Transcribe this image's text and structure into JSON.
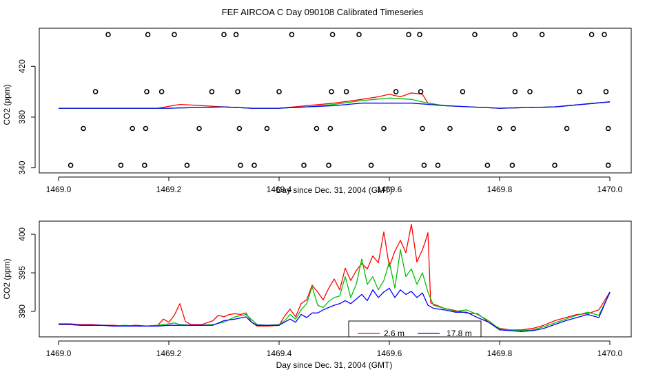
{
  "title": "FEF AIRCOA C  Day 090108  Calibrated Timeseries",
  "chart_data": [
    {
      "type": "line",
      "title": "",
      "xlabel": "Day since Dec. 31, 2004 (GMT)",
      "ylabel": "CO2 (ppm)",
      "xlim": [
        1469.0,
        1470.0
      ],
      "ylim": [
        336,
        450
      ],
      "xticks": [
        1469.0,
        1469.2,
        1469.4,
        1469.6,
        1469.8,
        1470.0
      ],
      "xtick_labels": [
        "1469.0",
        "1469.2",
        "1469.4",
        "1469.6",
        "1469.8",
        "1470.0"
      ],
      "yticks": [
        340,
        380,
        420
      ],
      "ytick_labels": [
        "340",
        "380",
        "420"
      ],
      "series": [
        {
          "name": "2.6 m",
          "color": "#ff0000",
          "x": [
            1469.0,
            1469.1,
            1469.18,
            1469.22,
            1469.3,
            1469.35,
            1469.4,
            1469.45,
            1469.5,
            1469.55,
            1469.58,
            1469.6,
            1469.62,
            1469.64,
            1469.66,
            1469.67,
            1469.7,
            1469.8,
            1469.9,
            1470.0
          ],
          "y": [
            387,
            387,
            387,
            390,
            388,
            387,
            387,
            389,
            391,
            394,
            396,
            398,
            396,
            399,
            398,
            391,
            389,
            387,
            388,
            392
          ]
        },
        {
          "name": "green",
          "color": "#00c000",
          "x": [
            1469.0,
            1469.1,
            1469.2,
            1469.3,
            1469.35,
            1469.4,
            1469.45,
            1469.5,
            1469.55,
            1469.6,
            1469.64,
            1469.67,
            1469.7,
            1469.8,
            1469.9,
            1470.0
          ],
          "y": [
            387,
            387,
            387,
            388,
            387,
            387,
            388,
            390,
            393,
            395,
            394,
            391,
            389,
            387,
            388,
            392
          ]
        },
        {
          "name": "17.8 m",
          "color": "#0000ff",
          "x": [
            1469.0,
            1469.1,
            1469.2,
            1469.3,
            1469.35,
            1469.4,
            1469.45,
            1469.5,
            1469.55,
            1469.6,
            1469.64,
            1469.67,
            1469.7,
            1469.8,
            1469.9,
            1470.0
          ],
          "y": [
            387,
            387,
            387,
            388,
            387,
            387,
            388,
            389,
            391,
            391,
            391,
            390,
            389,
            387,
            388,
            392
          ]
        }
      ],
      "markers": {
        "name": "calibration points",
        "symbol": "open circle",
        "points": [
          [
            1469.022,
            342
          ],
          [
            1469.113,
            342
          ],
          [
            1469.156,
            342
          ],
          [
            1469.233,
            342
          ],
          [
            1469.33,
            342
          ],
          [
            1469.355,
            342
          ],
          [
            1469.445,
            342
          ],
          [
            1469.49,
            342
          ],
          [
            1469.567,
            342
          ],
          [
            1469.663,
            342
          ],
          [
            1469.688,
            342
          ],
          [
            1469.778,
            342
          ],
          [
            1469.823,
            342
          ],
          [
            1469.9,
            342
          ],
          [
            1469.997,
            342
          ],
          [
            1469.045,
            371
          ],
          [
            1469.134,
            371
          ],
          [
            1469.158,
            371
          ],
          [
            1469.255,
            371
          ],
          [
            1469.328,
            371
          ],
          [
            1469.378,
            371
          ],
          [
            1469.468,
            371
          ],
          [
            1469.493,
            371
          ],
          [
            1469.59,
            371
          ],
          [
            1469.66,
            371
          ],
          [
            1469.71,
            371
          ],
          [
            1469.8,
            371
          ],
          [
            1469.825,
            371
          ],
          [
            1469.922,
            371
          ],
          [
            1469.997,
            371
          ],
          [
            1469.067,
            400
          ],
          [
            1469.16,
            400
          ],
          [
            1469.187,
            400
          ],
          [
            1469.278,
            400
          ],
          [
            1469.325,
            400
          ],
          [
            1469.4,
            400
          ],
          [
            1469.495,
            400
          ],
          [
            1469.522,
            400
          ],
          [
            1469.612,
            400
          ],
          [
            1469.657,
            400
          ],
          [
            1469.733,
            400
          ],
          [
            1469.828,
            400
          ],
          [
            1469.855,
            400
          ],
          [
            1469.945,
            400
          ],
          [
            1469.993,
            400
          ],
          [
            1469.09,
            445
          ],
          [
            1469.162,
            445
          ],
          [
            1469.21,
            445
          ],
          [
            1469.3,
            445
          ],
          [
            1469.322,
            445
          ],
          [
            1469.423,
            445
          ],
          [
            1469.497,
            445
          ],
          [
            1469.545,
            445
          ],
          [
            1469.635,
            445
          ],
          [
            1469.655,
            445
          ],
          [
            1469.755,
            445
          ],
          [
            1469.828,
            445
          ],
          [
            1469.877,
            445
          ],
          [
            1469.967,
            445
          ],
          [
            1469.99,
            445
          ]
        ]
      }
    },
    {
      "type": "line",
      "title": "",
      "xlabel": "Day since Dec. 31, 2004 (GMT)",
      "ylabel": "CO2 (ppm)",
      "xlim": [
        1469.0,
        1470.0
      ],
      "ylim": [
        386.7,
        401.7
      ],
      "xticks": [
        1469.0,
        1469.2,
        1469.4,
        1469.6,
        1469.8,
        1470.0
      ],
      "xtick_labels": [
        "1469.0",
        "1469.2",
        "1469.4",
        "1469.6",
        "1469.8",
        "1470.0"
      ],
      "yticks": [
        390,
        395,
        400
      ],
      "ytick_labels": [
        "390",
        "395",
        "400"
      ],
      "legend": {
        "placement": "bottom-center",
        "entries": [
          {
            "label": "2.6 m",
            "color": "#ff0000"
          },
          {
            "label": "17.8 m",
            "color": "#0000ff"
          }
        ]
      },
      "series": [
        {
          "name": "2.6 m",
          "color": "#ff0000",
          "x": [
            1469.0,
            1469.02,
            1469.04,
            1469.06,
            1469.08,
            1469.1,
            1469.12,
            1469.14,
            1469.16,
            1469.18,
            1469.19,
            1469.2,
            1469.21,
            1469.22,
            1469.23,
            1469.24,
            1469.26,
            1469.28,
            1469.29,
            1469.3,
            1469.31,
            1469.32,
            1469.33,
            1469.34,
            1469.35,
            1469.36,
            1469.38,
            1469.4,
            1469.41,
            1469.42,
            1469.43,
            1469.44,
            1469.45,
            1469.46,
            1469.47,
            1469.48,
            1469.49,
            1469.5,
            1469.51,
            1469.52,
            1469.53,
            1469.54,
            1469.55,
            1469.56,
            1469.57,
            1469.58,
            1469.59,
            1469.6,
            1469.61,
            1469.62,
            1469.63,
            1469.64,
            1469.65,
            1469.66,
            1469.665,
            1469.67,
            1469.675,
            1469.7,
            1469.72,
            1469.74,
            1469.76,
            1469.78,
            1469.8,
            1469.82,
            1469.84,
            1469.86,
            1469.88,
            1469.9,
            1469.92,
            1469.94,
            1469.96,
            1469.98,
            1470.0
          ],
          "y": [
            388.4,
            388.4,
            388.3,
            388.3,
            388.2,
            388.2,
            388.1,
            388.2,
            388.1,
            388.2,
            389.0,
            388.6,
            389.5,
            391.0,
            388.7,
            388.3,
            388.3,
            388.8,
            389.5,
            389.3,
            389.6,
            389.7,
            389.6,
            389.8,
            388.6,
            388.1,
            388.1,
            388.2,
            389.4,
            390.3,
            389.3,
            391.0,
            391.5,
            393.4,
            392.5,
            391.5,
            393.0,
            394.2,
            392.8,
            395.6,
            394.0,
            395.3,
            396.2,
            395.5,
            397.2,
            396.3,
            400.3,
            395.8,
            397.8,
            399.2,
            397.6,
            401.3,
            396.4,
            398.0,
            399.0,
            400.2,
            391.1,
            390.4,
            390.1,
            389.8,
            389.7,
            388.6,
            387.8,
            387.6,
            387.6,
            387.8,
            388.2,
            388.8,
            389.2,
            389.6,
            389.7,
            390.2,
            392.5
          ]
        },
        {
          "name": "green",
          "color": "#00c000",
          "x": [
            1469.0,
            1469.02,
            1469.04,
            1469.06,
            1469.08,
            1469.1,
            1469.12,
            1469.14,
            1469.16,
            1469.18,
            1469.2,
            1469.21,
            1469.22,
            1469.24,
            1469.26,
            1469.28,
            1469.3,
            1469.32,
            1469.34,
            1469.36,
            1469.38,
            1469.4,
            1469.41,
            1469.42,
            1469.43,
            1469.44,
            1469.45,
            1469.46,
            1469.47,
            1469.48,
            1469.49,
            1469.5,
            1469.51,
            1469.52,
            1469.53,
            1469.54,
            1469.55,
            1469.56,
            1469.57,
            1469.58,
            1469.59,
            1469.6,
            1469.61,
            1469.62,
            1469.63,
            1469.64,
            1469.65,
            1469.66,
            1469.67,
            1469.68,
            1469.7,
            1469.72,
            1469.74,
            1469.76,
            1469.78,
            1469.8,
            1469.82,
            1469.84,
            1469.86,
            1469.88,
            1469.9,
            1469.92,
            1469.94,
            1469.96,
            1469.98,
            1470.0
          ],
          "y": [
            388.3,
            388.3,
            388.2,
            388.2,
            388.2,
            388.1,
            388.2,
            388.1,
            388.1,
            388.2,
            388.4,
            388.5,
            388.3,
            388.2,
            388.2,
            388.3,
            388.6,
            389.3,
            389.6,
            388.3,
            388.2,
            388.3,
            388.8,
            389.6,
            389.0,
            390.2,
            391.0,
            393.2,
            390.8,
            390.5,
            391.3,
            391.8,
            392.0,
            394.5,
            391.8,
            393.5,
            396.8,
            393.5,
            394.5,
            392.8,
            394.0,
            396.4,
            393.0,
            398.0,
            394.5,
            395.5,
            393.5,
            395.0,
            392.5,
            390.8,
            390.4,
            390.0,
            390.2,
            389.6,
            388.8,
            387.7,
            387.6,
            387.5,
            387.6,
            388.0,
            388.5,
            389.0,
            389.5,
            389.9,
            389.5,
            392.4
          ]
        },
        {
          "name": "17.8 m",
          "color": "#0000ff",
          "x": [
            1469.0,
            1469.02,
            1469.04,
            1469.06,
            1469.08,
            1469.1,
            1469.12,
            1469.14,
            1469.16,
            1469.18,
            1469.2,
            1469.22,
            1469.24,
            1469.26,
            1469.28,
            1469.3,
            1469.32,
            1469.34,
            1469.35,
            1469.36,
            1469.38,
            1469.4,
            1469.41,
            1469.42,
            1469.43,
            1469.44,
            1469.45,
            1469.46,
            1469.47,
            1469.48,
            1469.49,
            1469.5,
            1469.51,
            1469.52,
            1469.53,
            1469.54,
            1469.55,
            1469.56,
            1469.57,
            1469.58,
            1469.59,
            1469.6,
            1469.61,
            1469.62,
            1469.63,
            1469.64,
            1469.65,
            1469.66,
            1469.67,
            1469.68,
            1469.7,
            1469.72,
            1469.74,
            1469.76,
            1469.78,
            1469.8,
            1469.82,
            1469.84,
            1469.86,
            1469.88,
            1469.9,
            1469.92,
            1469.94,
            1469.96,
            1469.98,
            1470.0
          ],
          "y": [
            388.3,
            388.3,
            388.2,
            388.2,
            388.2,
            388.1,
            388.1,
            388.1,
            388.1,
            388.1,
            388.2,
            388.2,
            388.2,
            388.2,
            388.2,
            388.8,
            389.0,
            389.3,
            388.6,
            388.2,
            388.2,
            388.2,
            388.6,
            389.0,
            388.6,
            389.6,
            389.2,
            389.8,
            389.8,
            390.2,
            390.5,
            390.8,
            391.0,
            391.4,
            391.0,
            391.6,
            392.2,
            391.4,
            392.8,
            391.8,
            392.5,
            393.0,
            391.8,
            392.8,
            392.2,
            392.6,
            391.8,
            392.4,
            390.8,
            390.4,
            390.2,
            389.9,
            389.9,
            389.2,
            388.6,
            387.6,
            387.5,
            387.4,
            387.5,
            387.8,
            388.3,
            388.8,
            389.2,
            389.6,
            389.2,
            392.5
          ]
        }
      ]
    }
  ]
}
